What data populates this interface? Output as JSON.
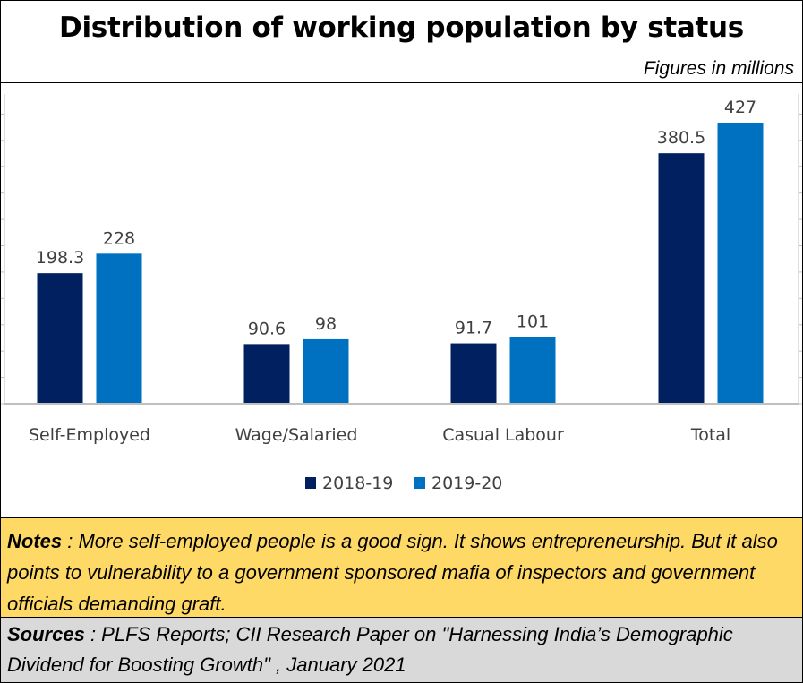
{
  "title": "Distribution of working population by status",
  "units_note": "Figures in millions",
  "chart_data": {
    "type": "bar",
    "categories": [
      "Self-Employed",
      "Wage/Salaried",
      "Casual Labour",
      "Total"
    ],
    "series": [
      {
        "name": "2018-19",
        "values": [
          198.3,
          90.6,
          91.7,
          380.5
        ],
        "labels": [
          "198.3",
          "90.6",
          "91.7",
          "380.5"
        ],
        "color": "#002060"
      },
      {
        "name": "2019-20",
        "values": [
          228,
          98,
          101,
          427
        ],
        "labels": [
          "228",
          "98",
          "101",
          "427"
        ],
        "color": "#0070c0"
      }
    ],
    "ylim": [
      0,
      480
    ],
    "grid": false,
    "legend": "bottom",
    "axis_color": "#bfbfbf"
  },
  "notes": {
    "label": "Notes",
    "text": " : More self-employed people is a good sign.  It shows entrepreneurship. But it also points to vulnerability to a government sponsored mafia of inspectors and government officials demanding graft."
  },
  "sources": {
    "label": "Sources",
    "text": " : PLFS Reports;  CII Research Paper on \"Harnessing India’s Demographic Dividend for Boosting Growth\" , January 2021"
  },
  "colors": {
    "notes_bg": "#ffd966",
    "sources_bg": "#d9d9d9"
  }
}
